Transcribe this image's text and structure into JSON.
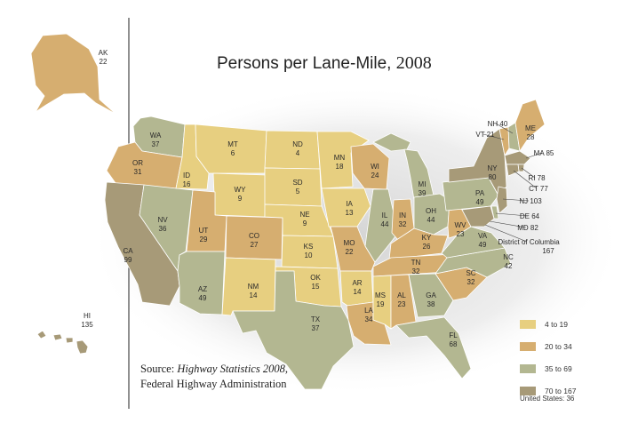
{
  "title": {
    "main": "Persons per Lane-Mile,",
    "year": "2008"
  },
  "source": {
    "line1_prefix": "Source: ",
    "line1_italic": "Highway Statistics 2008,",
    "line2": "Federal Highway Administration"
  },
  "legend": [
    {
      "label": "4 to 19",
      "color": "#e7cf80"
    },
    {
      "label": "20 to 34",
      "color": "#d6ae70"
    },
    {
      "label": "35 to 69",
      "color": "#b3b791"
    },
    {
      "label": "70 to 167",
      "color": "#a79a78"
    }
  ],
  "us_total": "United States: 36",
  "states": [
    {
      "code": "AK",
      "value": "22"
    },
    {
      "code": "HI",
      "value": "135"
    },
    {
      "code": "WA",
      "value": "37"
    },
    {
      "code": "OR",
      "value": "31"
    },
    {
      "code": "CA",
      "value": "99"
    },
    {
      "code": "NV",
      "value": "36"
    },
    {
      "code": "ID",
      "value": "16"
    },
    {
      "code": "MT",
      "value": "6"
    },
    {
      "code": "WY",
      "value": "9"
    },
    {
      "code": "UT",
      "value": "29"
    },
    {
      "code": "AZ",
      "value": "49"
    },
    {
      "code": "CO",
      "value": "27"
    },
    {
      "code": "NM",
      "value": "14"
    },
    {
      "code": "ND",
      "value": "4"
    },
    {
      "code": "SD",
      "value": "5"
    },
    {
      "code": "NE",
      "value": "9"
    },
    {
      "code": "KS",
      "value": "10"
    },
    {
      "code": "OK",
      "value": "15"
    },
    {
      "code": "TX",
      "value": "37"
    },
    {
      "code": "MN",
      "value": "18"
    },
    {
      "code": "IA",
      "value": "13"
    },
    {
      "code": "MO",
      "value": "22"
    },
    {
      "code": "AR",
      "value": "14"
    },
    {
      "code": "LA",
      "value": "34"
    },
    {
      "code": "WI",
      "value": "24"
    },
    {
      "code": "IL",
      "value": "44"
    },
    {
      "code": "MI",
      "value": "39"
    },
    {
      "code": "IN",
      "value": "32"
    },
    {
      "code": "OH",
      "value": "44"
    },
    {
      "code": "KY",
      "value": "26"
    },
    {
      "code": "TN",
      "value": "32"
    },
    {
      "code": "MS",
      "value": "19"
    },
    {
      "code": "AL",
      "value": "23"
    },
    {
      "code": "GA",
      "value": "38"
    },
    {
      "code": "FL",
      "value": "68"
    },
    {
      "code": "SC",
      "value": "32"
    },
    {
      "code": "NC",
      "value": "42"
    },
    {
      "code": "VA",
      "value": "49"
    },
    {
      "code": "WV",
      "value": "23"
    },
    {
      "code": "PA",
      "value": "49"
    },
    {
      "code": "NY",
      "value": "80"
    },
    {
      "code": "VT",
      "value": "21"
    },
    {
      "code": "NH",
      "value": "40"
    },
    {
      "code": "ME",
      "value": "28"
    },
    {
      "code": "MA",
      "value": "85"
    },
    {
      "code": "RI",
      "value": "78"
    },
    {
      "code": "CT",
      "value": "77"
    },
    {
      "code": "NJ",
      "value": "103"
    },
    {
      "code": "DE",
      "value": "64"
    },
    {
      "code": "MD",
      "value": "82"
    },
    {
      "code": "DC",
      "name": "District of Columbia",
      "value": "167"
    }
  ]
}
